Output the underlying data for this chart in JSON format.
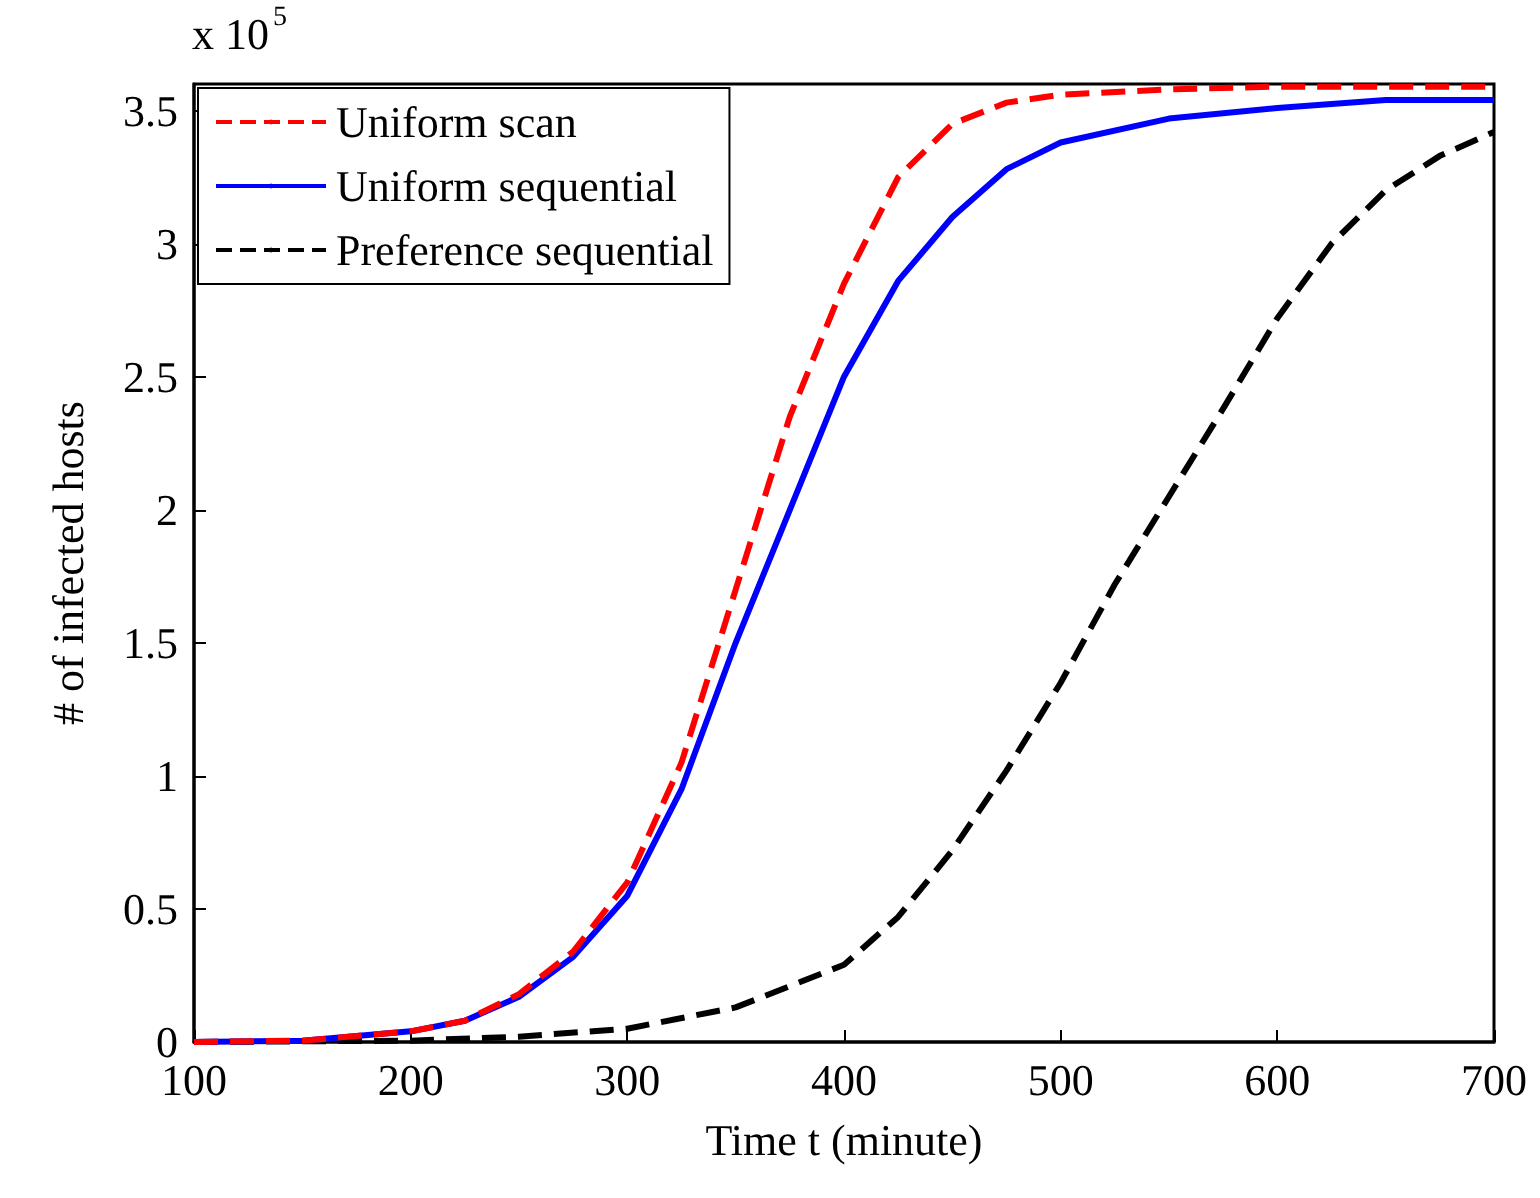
{
  "chart_data": {
    "type": "line",
    "xlabel": "Time t (minute)",
    "ylabel": "# of infected hosts",
    "annotations": [
      "x 10$^{5}$"
    ],
    "xlim": [
      100,
      700
    ],
    "xticks": [
      100,
      200,
      300,
      400,
      500,
      600,
      700
    ],
    "ylim": [
      0,
      3.6
    ],
    "yticks": [
      0,
      0.5,
      1,
      1.5,
      2,
      2.5,
      3,
      3.5
    ],
    "grid": false,
    "legend": "top left",
    "marker": "none",
    "series": [
      {
        "name": "Uniform scan",
        "color": "#ff0000",
        "line_style": "dashed",
        "x": [
          100,
          150,
          200,
          225,
          250,
          275,
          300,
          325,
          350,
          375,
          400,
          425,
          450,
          475,
          500,
          550,
          600,
          700
        ],
        "values": [
          0,
          0.005,
          0.04,
          0.08,
          0.18,
          0.34,
          0.6,
          1.05,
          1.7,
          2.35,
          2.85,
          3.25,
          3.45,
          3.53,
          3.56,
          3.58,
          3.59,
          3.59
        ]
      },
      {
        "name": "Uniform sequential",
        "color": "#0000ff",
        "line_style": "solid",
        "x": [
          100,
          150,
          200,
          225,
          250,
          275,
          300,
          325,
          350,
          375,
          400,
          425,
          450,
          475,
          500,
          550,
          600,
          650,
          700
        ],
        "values": [
          0,
          0.005,
          0.04,
          0.08,
          0.17,
          0.32,
          0.55,
          0.95,
          1.5,
          2.0,
          2.5,
          2.86,
          3.1,
          3.28,
          3.38,
          3.47,
          3.51,
          3.54,
          3.54
        ]
      },
      {
        "name": "Preference sequential",
        "color": "#000000",
        "line_style": "dashed",
        "x": [
          100,
          200,
          250,
          300,
          350,
          400,
          425,
          450,
          475,
          500,
          525,
          550,
          575,
          600,
          625,
          650,
          675,
          700
        ],
        "values": [
          0,
          0.005,
          0.02,
          0.05,
          0.13,
          0.29,
          0.47,
          0.72,
          1.02,
          1.35,
          1.72,
          2.05,
          2.38,
          2.72,
          3.0,
          3.2,
          3.33,
          3.42
        ]
      }
    ]
  }
}
